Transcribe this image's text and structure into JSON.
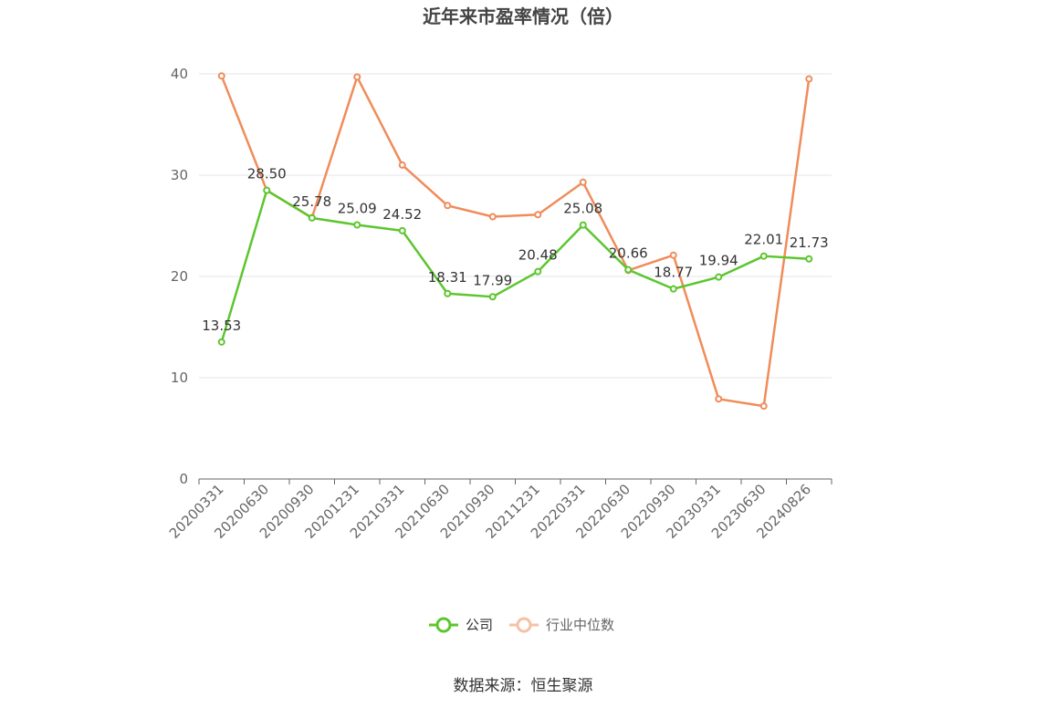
{
  "chart_data": {
    "type": "line",
    "title": "近年来市盈率情况（倍）",
    "categories": [
      "20200331",
      "20200630",
      "20200930",
      "20201231",
      "20210331",
      "20210630",
      "20210930",
      "20211231",
      "20220331",
      "20220630",
      "20220930",
      "20230331",
      "20230630",
      "20240826"
    ],
    "series": [
      {
        "name": "公司",
        "color": "#5cc62e",
        "values": [
          13.53,
          28.5,
          25.78,
          25.09,
          24.52,
          18.31,
          17.99,
          20.48,
          25.08,
          20.66,
          18.77,
          19.94,
          22.01,
          21.73
        ],
        "labels": [
          "13.53",
          "28.50",
          "25.78",
          "25.09",
          "24.52",
          "18.31",
          "17.99",
          "20.48",
          "25.08",
          "20.66",
          "18.77",
          "19.94",
          "22.01",
          "21.73"
        ]
      },
      {
        "name": "行业中位数",
        "color": "#f08c5a",
        "values": [
          39.8,
          28.5,
          25.8,
          39.7,
          31.0,
          27.0,
          25.9,
          26.1,
          29.3,
          20.6,
          22.1,
          7.9,
          7.2,
          39.5
        ]
      }
    ],
    "yticks": [
      0,
      10,
      20,
      30,
      40
    ],
    "ylim": [
      0,
      40
    ],
    "grid": true,
    "legend_position": "bottom"
  },
  "source_text": "数据来源：恒生聚源"
}
